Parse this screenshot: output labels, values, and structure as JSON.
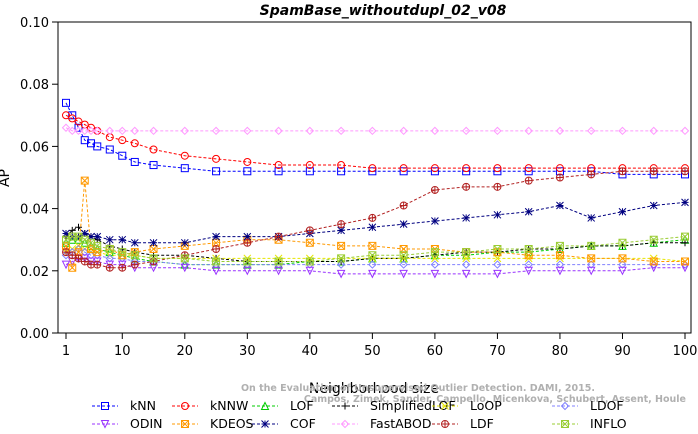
{
  "chart_data": {
    "type": "line",
    "title": "SpamBase_withoutdupl_02_v08",
    "xlabel": "Neighborhood size",
    "ylabel": "AP",
    "xlim": [
      1,
      100
    ],
    "ylim": [
      0.0,
      0.1
    ],
    "x_ticks": [
      "1",
      "10",
      "20",
      "30",
      "40",
      "50",
      "60",
      "70",
      "80",
      "90",
      "100"
    ],
    "y_ticks": [
      "0.00",
      "0.02",
      "0.04",
      "0.06",
      "0.08",
      "0.10"
    ],
    "x_tick_values": [
      1,
      10,
      20,
      30,
      40,
      50,
      60,
      70,
      80,
      90,
      100
    ],
    "y_tick_values": [
      0.0,
      0.02,
      0.04,
      0.06,
      0.08,
      0.1
    ],
    "legend_placement": "bottom",
    "watermark": [
      "Campos, Zimek, Sander, Campello, Micenkova, Schubert, Assent, Houle",
      "On the Evaluation of Unsupervised Outlier Detection. DAMI, 2015."
    ],
    "series": [
      {
        "name": "kNN",
        "color": "#0000ff",
        "marker": "square",
        "x": [
          1,
          2,
          3,
          4,
          5,
          6,
          8,
          10,
          12,
          15,
          20,
          25,
          30,
          35,
          40,
          45,
          50,
          55,
          60,
          65,
          70,
          75,
          80,
          85,
          90,
          95,
          100
        ],
        "y": [
          0.074,
          0.07,
          0.066,
          0.062,
          0.061,
          0.06,
          0.059,
          0.057,
          0.055,
          0.054,
          0.053,
          0.052,
          0.052,
          0.052,
          0.052,
          0.052,
          0.052,
          0.052,
          0.052,
          0.052,
          0.052,
          0.052,
          0.052,
          0.052,
          0.051,
          0.051,
          0.051
        ]
      },
      {
        "name": "kNNW",
        "color": "#ff0000",
        "marker": "circle",
        "x": [
          1,
          2,
          3,
          4,
          5,
          6,
          8,
          10,
          12,
          15,
          20,
          25,
          30,
          35,
          40,
          45,
          50,
          55,
          60,
          65,
          70,
          75,
          80,
          85,
          90,
          95,
          100
        ],
        "y": [
          0.07,
          0.069,
          0.068,
          0.067,
          0.066,
          0.065,
          0.063,
          0.062,
          0.061,
          0.059,
          0.057,
          0.056,
          0.055,
          0.054,
          0.054,
          0.054,
          0.053,
          0.053,
          0.053,
          0.053,
          0.053,
          0.053,
          0.053,
          0.053,
          0.053,
          0.053,
          0.053
        ]
      },
      {
        "name": "LOF",
        "color": "#00cc00",
        "marker": "triangle-up",
        "x": [
          1,
          2,
          3,
          4,
          5,
          6,
          8,
          10,
          12,
          15,
          20,
          25,
          30,
          35,
          40,
          45,
          50,
          55,
          60,
          65,
          70,
          75,
          80,
          85,
          90,
          95,
          100
        ],
        "y": [
          0.029,
          0.03,
          0.03,
          0.029,
          0.028,
          0.027,
          0.026,
          0.025,
          0.024,
          0.023,
          0.022,
          0.022,
          0.022,
          0.022,
          0.023,
          0.023,
          0.024,
          0.024,
          0.025,
          0.025,
          0.026,
          0.026,
          0.027,
          0.028,
          0.028,
          0.029,
          0.03
        ]
      },
      {
        "name": "SimplifiedLOF",
        "color": "#000000",
        "marker": "plus",
        "x": [
          1,
          2,
          3,
          4,
          5,
          6,
          8,
          10,
          12,
          15,
          20,
          25,
          30,
          35,
          40,
          45,
          50,
          55,
          60,
          65,
          70,
          75,
          80,
          85,
          90,
          95,
          100
        ],
        "y": [
          0.031,
          0.033,
          0.034,
          0.032,
          0.031,
          0.03,
          0.028,
          0.027,
          0.026,
          0.025,
          0.025,
          0.024,
          0.023,
          0.023,
          0.023,
          0.023,
          0.024,
          0.024,
          0.025,
          0.026,
          0.026,
          0.027,
          0.027,
          0.028,
          0.028,
          0.029,
          0.029
        ]
      },
      {
        "name": "LoOP",
        "color": "#e6e600",
        "marker": "x",
        "x": [
          1,
          2,
          3,
          4,
          5,
          6,
          8,
          10,
          12,
          15,
          20,
          25,
          30,
          35,
          40,
          45,
          50,
          55,
          60,
          65,
          70,
          75,
          80,
          85,
          90,
          95,
          100
        ],
        "y": [
          0.026,
          0.027,
          0.028,
          0.027,
          0.026,
          0.026,
          0.025,
          0.025,
          0.025,
          0.024,
          0.024,
          0.024,
          0.024,
          0.024,
          0.024,
          0.024,
          0.024,
          0.024,
          0.024,
          0.024,
          0.024,
          0.024,
          0.024,
          0.024,
          0.024,
          0.024,
          0.023
        ]
      },
      {
        "name": "LDOF",
        "color": "#8080ff",
        "marker": "diamond",
        "x": [
          1,
          2,
          3,
          4,
          5,
          6,
          8,
          10,
          12,
          15,
          20,
          25,
          30,
          35,
          40,
          45,
          50,
          55,
          60,
          65,
          70,
          75,
          80,
          85,
          90,
          95,
          100
        ],
        "y": [
          0.025,
          0.026,
          0.027,
          0.026,
          0.025,
          0.025,
          0.024,
          0.024,
          0.023,
          0.023,
          0.022,
          0.022,
          0.022,
          0.022,
          0.022,
          0.022,
          0.022,
          0.022,
          0.022,
          0.022,
          0.022,
          0.022,
          0.022,
          0.022,
          0.022,
          0.022,
          0.022
        ]
      },
      {
        "name": "ODIN",
        "color": "#9933ff",
        "marker": "triangle-down",
        "x": [
          1,
          2,
          3,
          4,
          5,
          6,
          8,
          10,
          12,
          15,
          20,
          25,
          30,
          35,
          40,
          45,
          50,
          55,
          60,
          65,
          70,
          75,
          80,
          85,
          90,
          95,
          100
        ],
        "y": [
          0.022,
          0.023,
          0.024,
          0.024,
          0.023,
          0.023,
          0.022,
          0.022,
          0.021,
          0.021,
          0.021,
          0.02,
          0.02,
          0.02,
          0.02,
          0.019,
          0.019,
          0.019,
          0.019,
          0.019,
          0.019,
          0.02,
          0.02,
          0.02,
          0.02,
          0.021,
          0.021
        ]
      },
      {
        "name": "KDEOS",
        "color": "#ff9900",
        "marker": "square-x",
        "x": [
          1,
          2,
          3,
          4,
          5,
          6,
          8,
          10,
          12,
          15,
          20,
          25,
          30,
          35,
          40,
          45,
          50,
          55,
          60,
          65,
          70,
          75,
          80,
          85,
          90,
          95,
          100
        ],
        "y": [
          0.028,
          0.021,
          0.026,
          0.049,
          0.027,
          0.026,
          0.027,
          0.025,
          0.026,
          0.027,
          0.028,
          0.029,
          0.03,
          0.03,
          0.029,
          0.028,
          0.028,
          0.027,
          0.027,
          0.026,
          0.026,
          0.025,
          0.025,
          0.024,
          0.024,
          0.023,
          0.023
        ]
      },
      {
        "name": "COF",
        "color": "#000080",
        "marker": "asterisk",
        "x": [
          1,
          2,
          3,
          4,
          5,
          6,
          8,
          10,
          12,
          15,
          20,
          25,
          30,
          35,
          40,
          45,
          50,
          55,
          60,
          65,
          70,
          75,
          80,
          85,
          90,
          95,
          100
        ],
        "y": [
          0.032,
          0.031,
          0.031,
          0.032,
          0.031,
          0.031,
          0.03,
          0.03,
          0.029,
          0.029,
          0.029,
          0.031,
          0.031,
          0.031,
          0.032,
          0.033,
          0.034,
          0.035,
          0.036,
          0.037,
          0.038,
          0.039,
          0.041,
          0.037,
          0.039,
          0.041,
          0.042
        ]
      },
      {
        "name": "FastABOD",
        "color": "#ff99ff",
        "marker": "diamond",
        "x": [
          1,
          2,
          3,
          4,
          5,
          6,
          8,
          10,
          12,
          15,
          20,
          25,
          30,
          35,
          40,
          45,
          50,
          55,
          60,
          65,
          70,
          75,
          80,
          85,
          90,
          95,
          100
        ],
        "y": [
          0.066,
          0.065,
          0.065,
          0.065,
          0.065,
          0.065,
          0.065,
          0.065,
          0.065,
          0.065,
          0.065,
          0.065,
          0.065,
          0.065,
          0.065,
          0.065,
          0.065,
          0.065,
          0.065,
          0.065,
          0.065,
          0.065,
          0.065,
          0.065,
          0.065,
          0.065,
          0.065
        ]
      },
      {
        "name": "LDF",
        "color": "#b22222",
        "marker": "circle-plus",
        "x": [
          1,
          2,
          3,
          4,
          5,
          6,
          8,
          10,
          12,
          15,
          20,
          25,
          30,
          35,
          40,
          45,
          50,
          55,
          60,
          65,
          70,
          75,
          80,
          85,
          90,
          95,
          100
        ],
        "y": [
          0.026,
          0.025,
          0.024,
          0.023,
          0.022,
          0.022,
          0.021,
          0.021,
          0.022,
          0.023,
          0.025,
          0.027,
          0.029,
          0.031,
          0.033,
          0.035,
          0.037,
          0.041,
          0.046,
          0.047,
          0.047,
          0.049,
          0.05,
          0.051,
          0.052,
          0.052,
          0.052
        ]
      },
      {
        "name": "INFLO",
        "color": "#99cc33",
        "marker": "square-x",
        "x": [
          1,
          2,
          3,
          4,
          5,
          6,
          8,
          10,
          12,
          15,
          20,
          25,
          30,
          35,
          40,
          45,
          50,
          55,
          60,
          65,
          70,
          75,
          80,
          85,
          90,
          95,
          100
        ],
        "y": [
          0.03,
          0.031,
          0.031,
          0.03,
          0.029,
          0.028,
          0.027,
          0.026,
          0.025,
          0.024,
          0.024,
          0.023,
          0.023,
          0.023,
          0.023,
          0.024,
          0.025,
          0.025,
          0.026,
          0.026,
          0.027,
          0.027,
          0.028,
          0.028,
          0.029,
          0.03,
          0.031
        ]
      }
    ],
    "legend_rows": [
      [
        "kNN",
        "kNNW",
        "LOF",
        "SimplifiedLOF",
        "LoOP",
        "LDOF"
      ],
      [
        "ODIN",
        "KDEOS",
        "COF",
        "FastABOD",
        "LDF",
        "INFLO"
      ]
    ]
  }
}
